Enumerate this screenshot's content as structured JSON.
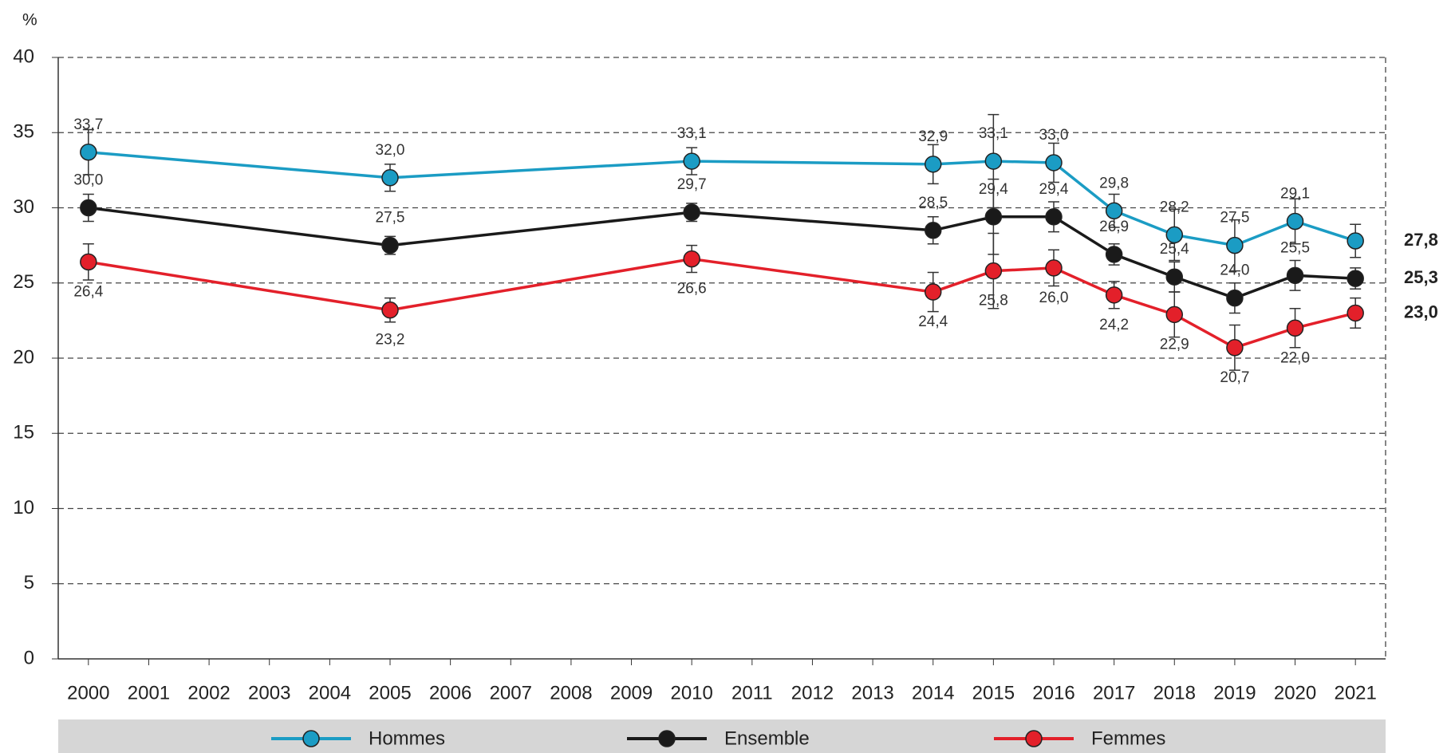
{
  "chart_data": {
    "type": "line",
    "y_label": "%",
    "x": [
      2000,
      2005,
      2010,
      2014,
      2015,
      2016,
      2017,
      2018,
      2019,
      2020,
      2021
    ],
    "xlim": [
      1999.5,
      2021.5
    ],
    "xticks": [
      2000,
      2001,
      2002,
      2003,
      2004,
      2005,
      2006,
      2007,
      2008,
      2009,
      2010,
      2011,
      2012,
      2013,
      2014,
      2015,
      2016,
      2017,
      2018,
      2019,
      2020,
      2021
    ],
    "ylim": [
      0,
      40
    ],
    "yticks": [
      0,
      5,
      10,
      15,
      20,
      25,
      30,
      35,
      40
    ],
    "grid": true,
    "legend": "bottom",
    "series": [
      {
        "name": "Hommes",
        "color": "#1b9cc4",
        "values": [
          33.7,
          32.0,
          33.1,
          32.9,
          33.1,
          33.0,
          29.8,
          28.2,
          27.5,
          29.1,
          27.8
        ],
        "value_labels": [
          "33,7",
          "32,0",
          "33,1",
          "32,9",
          "33,1",
          "33,0",
          "29,8",
          "28,2",
          "27,5",
          "29,1",
          "27,8"
        ],
        "errors": [
          1.5,
          0.9,
          0.9,
          1.3,
          3.1,
          1.3,
          1.1,
          1.7,
          1.7,
          1.5,
          1.1
        ]
      },
      {
        "name": "Ensemble",
        "color": "#1a1a1a",
        "values": [
          30.0,
          27.5,
          29.7,
          28.5,
          29.4,
          29.4,
          26.9,
          25.4,
          24.0,
          25.5,
          25.3
        ],
        "value_labels": [
          "30,0",
          "27,5",
          "29,7",
          "28,5",
          "29,4",
          "29,4",
          "26,9",
          "25,4",
          "24,0",
          "25,5",
          "25,3"
        ],
        "errors": [
          0.9,
          0.6,
          0.6,
          0.9,
          2.5,
          1.0,
          0.7,
          1.0,
          1.0,
          1.0,
          0.7
        ]
      },
      {
        "name": "Femmes",
        "color": "#e3202a",
        "values": [
          26.4,
          23.2,
          26.6,
          24.4,
          25.8,
          26.0,
          24.2,
          22.9,
          20.7,
          22.0,
          23.0
        ],
        "value_labels": [
          "26,4",
          "23,2",
          "26,6",
          "24,4",
          "25,8",
          "26,0",
          "24,2",
          "22,9",
          "20,7",
          "22,0",
          "23,0"
        ],
        "errors": [
          1.2,
          0.8,
          0.9,
          1.3,
          2.5,
          1.2,
          0.9,
          1.5,
          1.5,
          1.3,
          1.0
        ]
      }
    ]
  }
}
